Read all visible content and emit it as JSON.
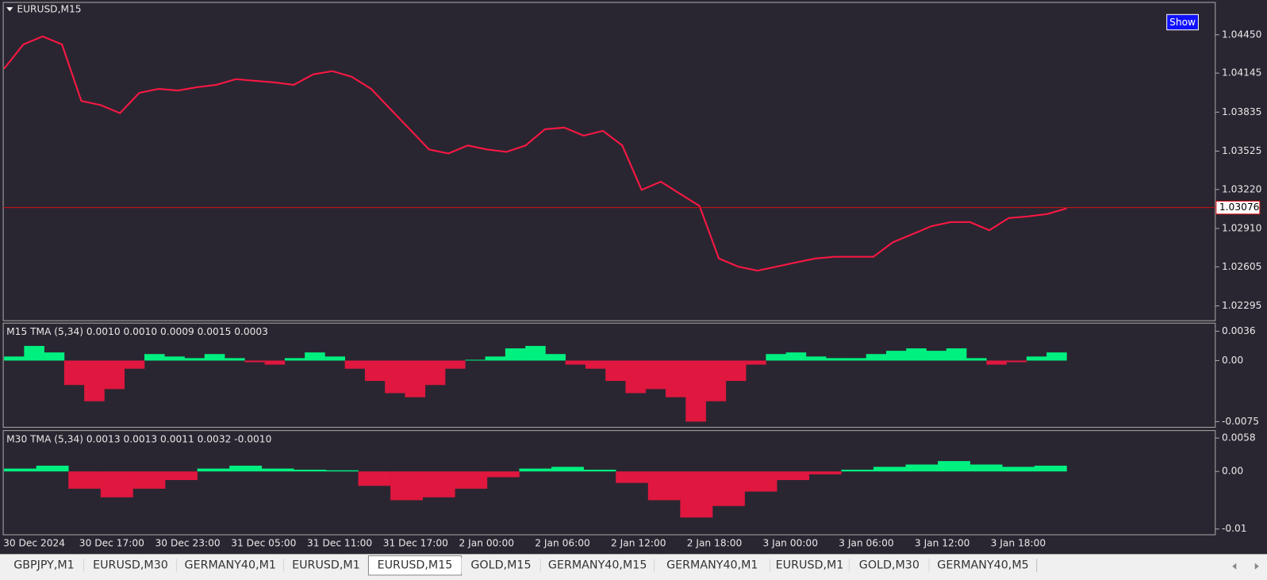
{
  "window": {
    "title": "EURUSD,M15",
    "button": "Show"
  },
  "chart_data": [
    {
      "type": "line",
      "color": "#ff1744",
      "values": [
        1.0418,
        1.04373,
        1.04437,
        1.04373,
        1.03924,
        1.03891,
        1.03827,
        1.03988,
        1.0402,
        1.04007,
        1.04033,
        1.04052,
        1.04097,
        1.04084,
        1.04071,
        1.04052,
        1.04135,
        1.04161,
        1.04116,
        1.0402,
        1.03859,
        1.03699,
        1.03538,
        1.03506,
        1.0357,
        1.03538,
        1.03519,
        1.0357,
        1.03699,
        1.03712,
        1.03648,
        1.03686,
        1.0357,
        1.03217,
        1.03282,
        1.03185,
        1.03089,
        1.02672,
        1.02607,
        1.02575,
        1.02607,
        1.0264,
        1.02672,
        1.02685,
        1.02685,
        1.02685,
        1.028,
        1.02864,
        1.02928,
        1.02961,
        1.02961,
        1.02896,
        1.02993,
        1.03006,
        1.03025,
        1.0307
      ],
      "ylim": [
        1.02177,
        1.04707
      ],
      "yticks": [
        {
          "value": 1.0445,
          "label": "1.04450"
        },
        {
          "value": 1.04145,
          "label": "1.04145"
        },
        {
          "value": 1.03835,
          "label": "1.03835"
        },
        {
          "value": 1.03525,
          "label": "1.03525"
        },
        {
          "value": 1.0322,
          "label": "1.03220"
        },
        {
          "value": 1.0291,
          "label": "1.02910"
        },
        {
          "value": 1.02605,
          "label": "1.02605"
        },
        {
          "value": 1.02295,
          "label": "1.02295"
        }
      ],
      "current_price": 1.03076,
      "time_labels": [
        "30 Dec 2024",
        "30 Dec 17:00",
        "30 Dec 23:00",
        "31 Dec 05:00",
        "31 Dec 11:00",
        "31 Dec 17:00",
        "2 Jan 00:00",
        "2 Jan 06:00",
        "2 Jan 12:00",
        "2 Jan 18:00",
        "3 Jan 00:00",
        "3 Jan 06:00",
        "3 Jan 12:00",
        "3 Jan 18:00"
      ]
    },
    {
      "type": "bar",
      "title": "M15 TMA (5,34) 0.0010 0.0010 0.0009 0.0015 0.0003",
      "up_color": "#00f080",
      "down_color": "#e0173f",
      "values": [
        0.0005,
        0.0018,
        0.001,
        -0.003,
        -0.005,
        -0.0035,
        -0.001,
        0.0008,
        0.0005,
        0.0003,
        0.0008,
        0.0003,
        -0.0002,
        -0.0005,
        0.0003,
        0.001,
        0.0005,
        -0.001,
        -0.0025,
        -0.004,
        -0.0045,
        -0.003,
        -0.001,
        0.0001,
        0.0005,
        0.0015,
        0.0018,
        0.0008,
        -0.0005,
        -0.001,
        -0.0025,
        -0.004,
        -0.0035,
        -0.0045,
        -0.0075,
        -0.005,
        -0.0025,
        -0.0005,
        0.0008,
        0.001,
        0.0005,
        0.0003,
        0.0003,
        0.0008,
        0.0012,
        0.0015,
        0.0012,
        0.0015,
        0.0003,
        -0.0005,
        -0.0002,
        0.0005,
        0.001
      ],
      "ylim": [
        -0.0082,
        0.0046
      ],
      "yticks": [
        0.0036,
        {
          "value": 0,
          "label": "0.00"
        },
        -0.0075
      ]
    },
    {
      "type": "bar",
      "title": "M30 TMA (5,34) 0.0013 0.0013 0.0011 0.0032 -0.0010",
      "up_color": "#00f080",
      "down_color": "#e0173f",
      "values": [
        0.0005,
        0.001,
        -0.003,
        -0.0045,
        -0.003,
        -0.0015,
        0.0005,
        0.001,
        0.0005,
        0.0003,
        0.0002,
        -0.0025,
        -0.005,
        -0.0045,
        -0.003,
        -0.001,
        0.0005,
        0.0008,
        0.0003,
        -0.002,
        -0.005,
        -0.008,
        -0.006,
        -0.0035,
        -0.0015,
        -0.0005,
        0.0003,
        0.0008,
        0.0012,
        0.0018,
        0.0012,
        0.0008,
        0.001
      ],
      "ylim": [
        -0.011,
        0.0071
      ],
      "yticks": [
        0.0058,
        {
          "value": 0,
          "label": "0.00"
        },
        -0.01
      ]
    }
  ],
  "tabs": [
    "GBPJPY,M1",
    "EURUSD,M30",
    "GERMANY40,M1",
    "EURUSD,M1",
    "EURUSD,M15",
    "GOLD,M15",
    "GERMANY40,M15",
    "GERMANY40,M1",
    "EURUSD,M1",
    "GOLD,M30",
    "GERMANY40,M5"
  ],
  "active_tab": 4
}
